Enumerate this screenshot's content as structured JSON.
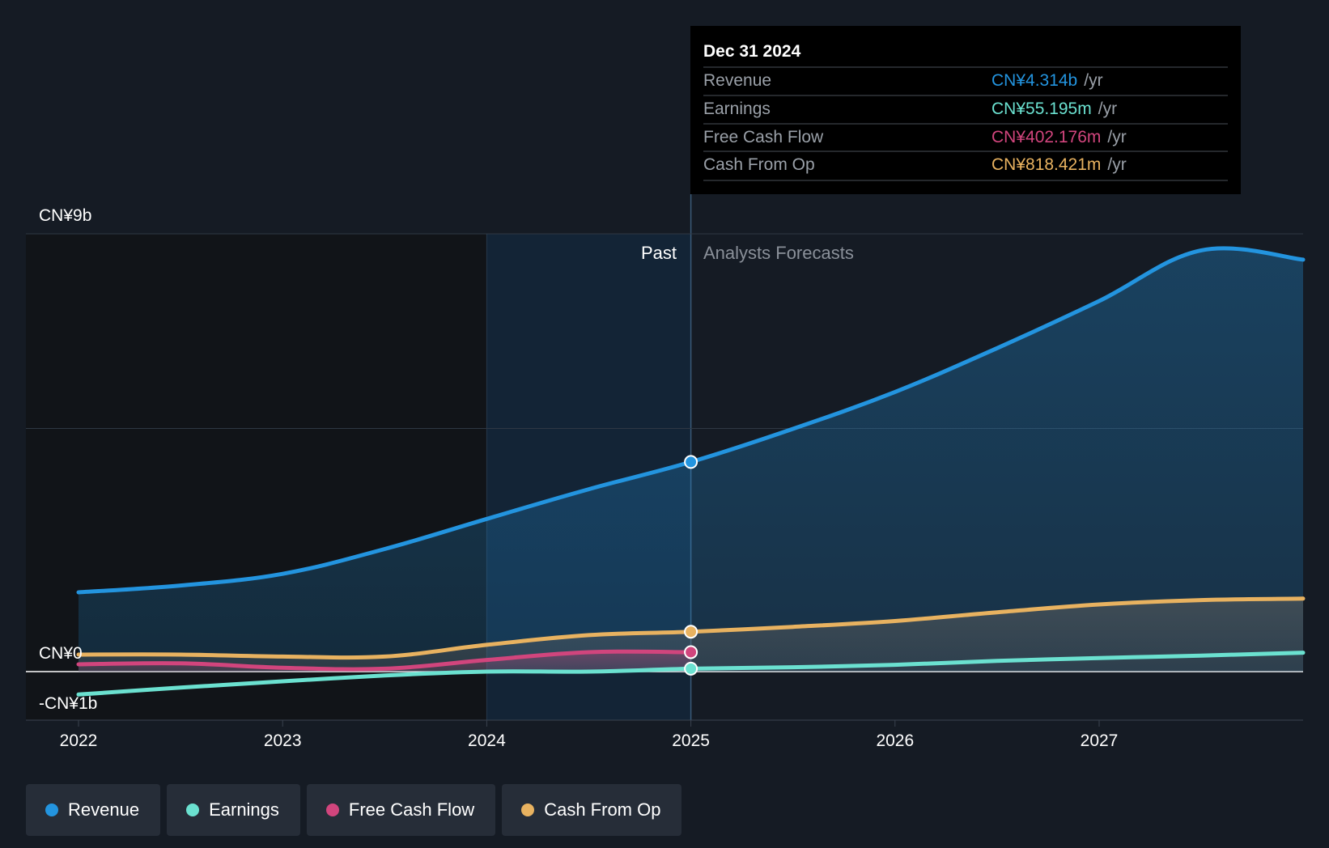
{
  "tooltip": {
    "date": "Dec 31 2024",
    "unit": "/yr",
    "rows": [
      {
        "label": "Revenue",
        "value": "CN¥4.314b",
        "color": "#2394df"
      },
      {
        "label": "Earnings",
        "value": "CN¥55.195m",
        "color": "#6be1d0"
      },
      {
        "label": "Free Cash Flow",
        "value": "CN¥402.176m",
        "color": "#d1457d"
      },
      {
        "label": "Cash From Op",
        "value": "CN¥818.421m",
        "color": "#e8b260"
      }
    ]
  },
  "legend": [
    {
      "label": "Revenue",
      "color": "#2394df"
    },
    {
      "label": "Earnings",
      "color": "#6be1d0"
    },
    {
      "label": "Free Cash Flow",
      "color": "#d1457d"
    },
    {
      "label": "Cash From Op",
      "color": "#e8b260"
    }
  ],
  "chart_data": {
    "type": "line",
    "x_unit": "year",
    "y_unit": "CN¥ billions",
    "ylim": [
      -1,
      9
    ],
    "xlim": [
      2021.75,
      2028.0
    ],
    "y_tick_labels": [
      {
        "value": 9,
        "label": "CN¥9b"
      },
      {
        "value": 0,
        "label": "CN¥0"
      },
      {
        "value": -1,
        "label": "-CN¥1b"
      }
    ],
    "y_gridlines": [
      9,
      5,
      0
    ],
    "x_ticks": [
      2022,
      2023,
      2024,
      2025,
      2026,
      2027
    ],
    "x_tick_labels": [
      "2022",
      "2023",
      "2024",
      "2025",
      "2026",
      "2027"
    ],
    "past_label": "Past",
    "forecast_label": "Analysts Forecasts",
    "divider_x": 2025.0,
    "past_start": 2024.0,
    "series": [
      {
        "name": "Revenue",
        "color": "#2394df",
        "fill": true,
        "x": [
          2022.0,
          2022.5,
          2023.0,
          2023.5,
          2024.0,
          2024.5,
          2025.0,
          2025.5,
          2026.0,
          2026.5,
          2027.0,
          2027.5,
          2028.0
        ],
        "y": [
          1.63,
          1.77,
          2.01,
          2.52,
          3.14,
          3.75,
          4.31,
          4.99,
          5.75,
          6.65,
          7.62,
          8.66,
          8.47
        ]
      },
      {
        "name": "Cash From Op",
        "color": "#e8b260",
        "fill": true,
        "x": [
          2022.0,
          2022.5,
          2023.0,
          2023.5,
          2024.0,
          2024.5,
          2025.0,
          2025.5,
          2026.0,
          2026.5,
          2027.0,
          2027.5,
          2028.0
        ],
        "y": [
          0.35,
          0.35,
          0.31,
          0.31,
          0.55,
          0.75,
          0.82,
          0.92,
          1.04,
          1.22,
          1.38,
          1.47,
          1.5
        ]
      },
      {
        "name": "Free Cash Flow",
        "color": "#d1457d",
        "fill": true,
        "x": [
          2022.0,
          2022.5,
          2023.0,
          2023.5,
          2024.0,
          2024.5,
          2025.0
        ],
        "y": [
          0.15,
          0.17,
          0.08,
          0.06,
          0.24,
          0.4,
          0.4
        ]
      },
      {
        "name": "Earnings",
        "color": "#6be1d0",
        "fill": false,
        "x": [
          2022.0,
          2022.5,
          2023.0,
          2023.5,
          2024.0,
          2024.5,
          2025.0,
          2025.5,
          2026.0,
          2026.5,
          2027.0,
          2027.5,
          2028.0
        ],
        "y": [
          -0.47,
          -0.33,
          -0.2,
          -0.08,
          0.0,
          0.0,
          0.06,
          0.09,
          0.14,
          0.22,
          0.28,
          0.33,
          0.39
        ]
      }
    ],
    "highlight_x": 2025.0,
    "highlight_points": [
      {
        "series": "Revenue",
        "y": 4.31
      },
      {
        "series": "Cash From Op",
        "y": 0.82
      },
      {
        "series": "Free Cash Flow",
        "y": 0.4
      },
      {
        "series": "Earnings",
        "y": 0.06
      }
    ]
  }
}
